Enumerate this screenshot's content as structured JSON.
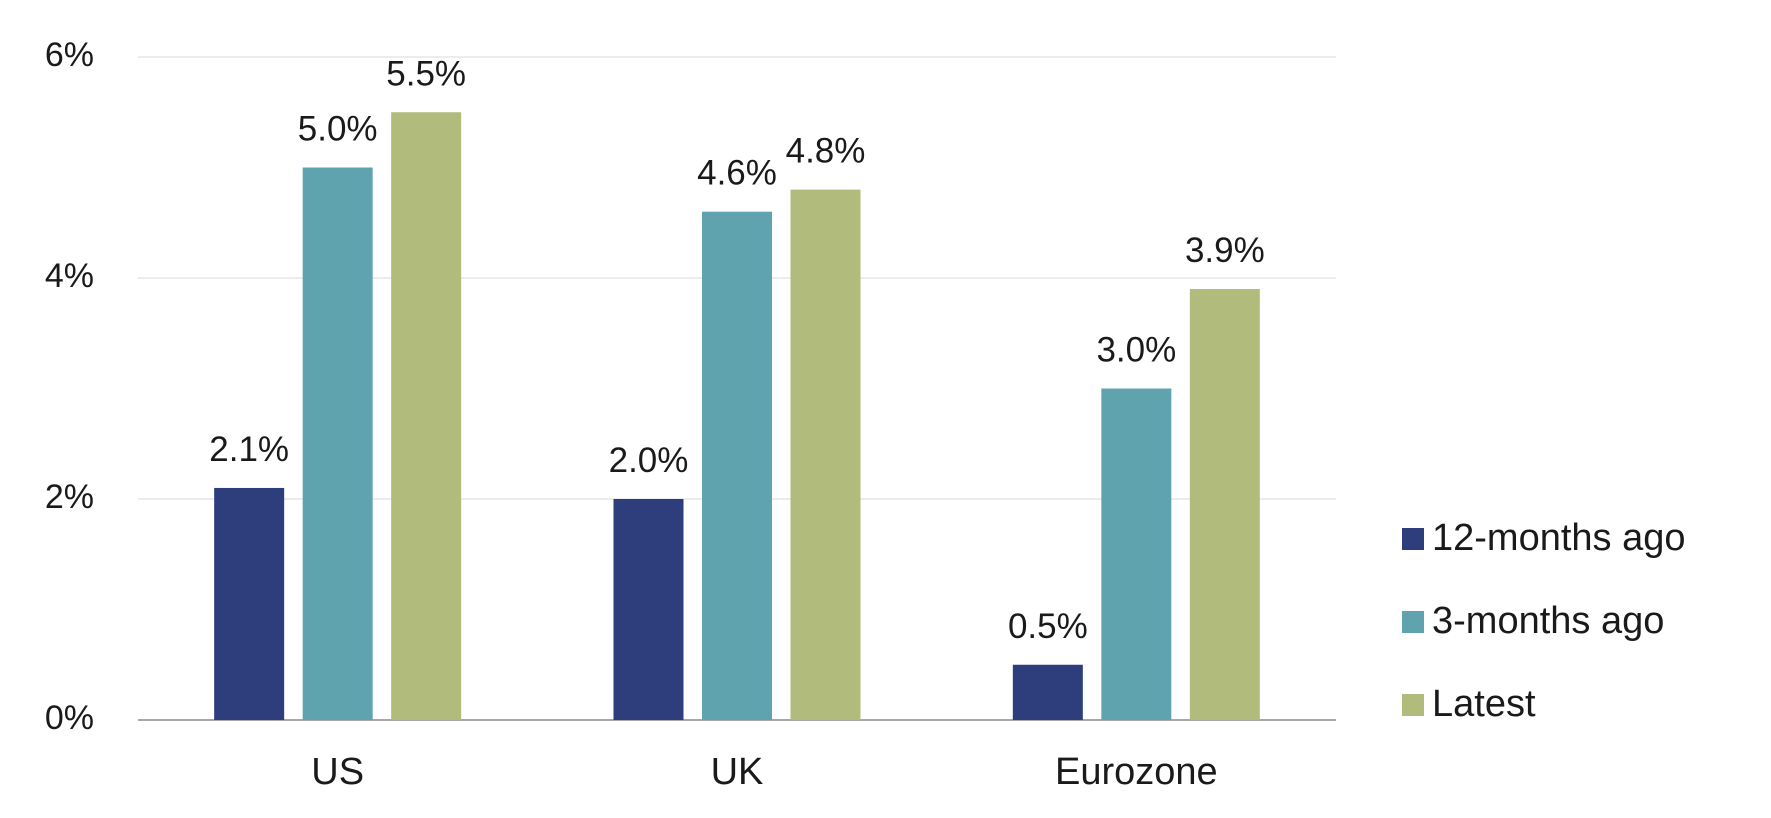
{
  "chart_data": {
    "type": "bar",
    "title": "",
    "xlabel": "",
    "ylabel": "",
    "categories": [
      "US",
      "UK",
      "Eurozone"
    ],
    "series": [
      {
        "name": "12-months ago",
        "color": "#2e3d7c",
        "values": [
          2.1,
          2.0,
          0.5
        ],
        "labels": [
          "2.1%",
          "2.0%",
          "0.5%"
        ]
      },
      {
        "name": "3-months ago",
        "color": "#5fa3af",
        "values": [
          5.0,
          4.6,
          3.0
        ],
        "labels": [
          "5.0%",
          "4.6%",
          "3.0%"
        ]
      },
      {
        "name": "Latest",
        "color": "#b1bb7c",
        "values": [
          5.5,
          4.8,
          3.9
        ],
        "labels": [
          "5.5%",
          "4.8%",
          "3.9%"
        ]
      }
    ],
    "ylim": [
      0,
      6
    ],
    "yticks": [
      0,
      2,
      4,
      6
    ],
    "ytick_labels": [
      "0%",
      "2%",
      "4%",
      "6%"
    ],
    "grid": true,
    "legend_position": "right"
  }
}
